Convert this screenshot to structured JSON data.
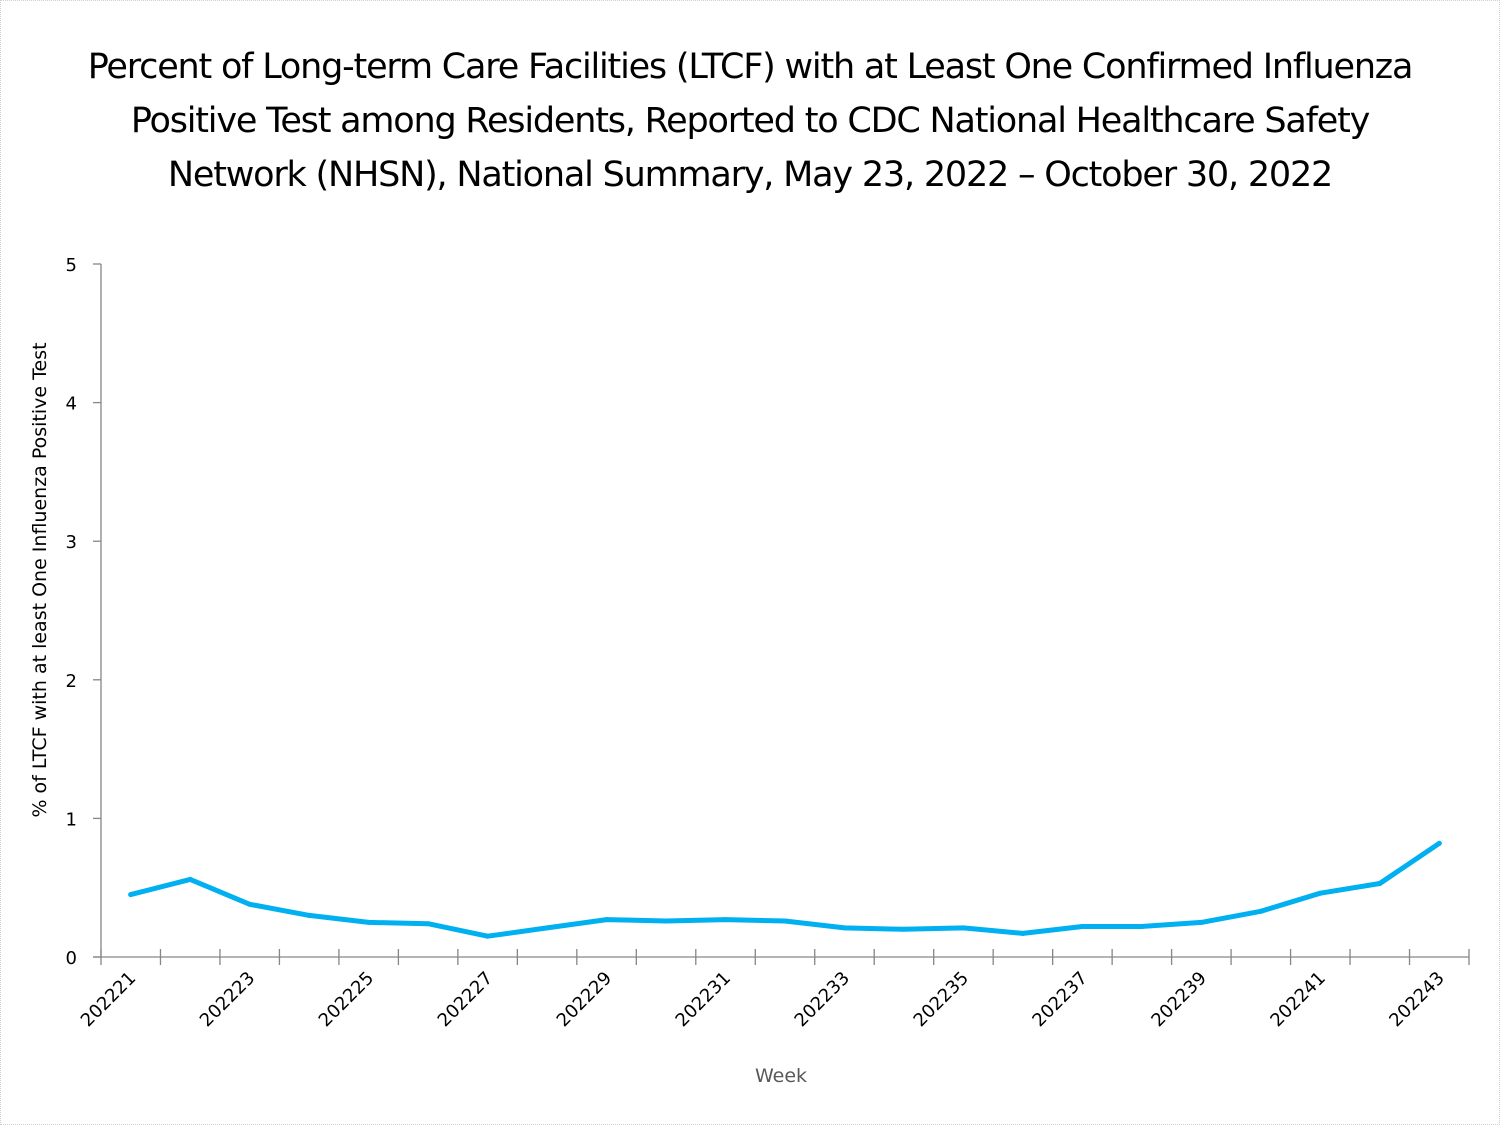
{
  "chart_data": {
    "type": "line",
    "title_lines": [
      "Percent of Long-term Care Facilities (LTCF) with at Least One Confirmed Influenza",
      "Positive Test among Residents, Reported to CDC National Healthcare Safety",
      "Network (NHSN), National Summary, May 23, 2022 – October 30, 2022"
    ],
    "xlabel": "Week",
    "ylabel": "% of LTCF with at least One Influenza Positive Test",
    "ylim": [
      0,
      5
    ],
    "yticks": [
      0,
      1,
      2,
      3,
      4,
      5
    ],
    "grid": false,
    "legend": "none",
    "line_color": "#00B0F0",
    "categories": [
      "202221",
      "202222",
      "202223",
      "202224",
      "202225",
      "202226",
      "202227",
      "202228",
      "202229",
      "202230",
      "202231",
      "202232",
      "202233",
      "202234",
      "202235",
      "202236",
      "202237",
      "202238",
      "202239",
      "202240",
      "202241",
      "202242",
      "202243"
    ],
    "tick_labels_shown": [
      "202221",
      "202223",
      "202225",
      "202227",
      "202229",
      "202231",
      "202233",
      "202235",
      "202237",
      "202239",
      "202241",
      "202243"
    ],
    "series": [
      {
        "name": "% of LTCF with at least One Influenza Positive Test",
        "values": [
          0.45,
          0.56,
          0.38,
          0.3,
          0.25,
          0.24,
          0.15,
          0.21,
          0.27,
          0.26,
          0.27,
          0.26,
          0.21,
          0.2,
          0.21,
          0.17,
          0.22,
          0.22,
          0.25,
          0.33,
          0.46,
          0.53,
          0.82
        ]
      }
    ]
  }
}
